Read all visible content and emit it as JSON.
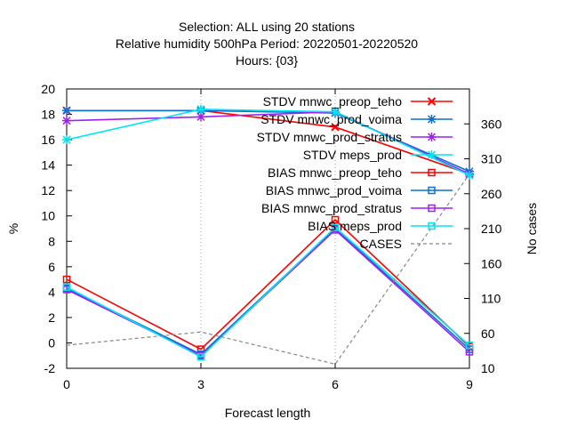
{
  "chart_data": {
    "type": "line",
    "title_lines": [
      "Selection: ALL using    20 stations",
      "Relative humidity 500hPa   Period: 20220501-20220520",
      "Hours: {03}"
    ],
    "xlabel": "Forecast length",
    "ylabel": "%",
    "y2label": "No cases",
    "x": [
      0,
      3,
      6,
      9
    ],
    "xlim": [
      0,
      9
    ],
    "ylim": [
      -2,
      20
    ],
    "y2lim": [
      10,
      410
    ],
    "xticks": [
      0,
      3,
      6,
      9
    ],
    "yticks": [
      -2,
      0,
      2,
      4,
      6,
      8,
      10,
      12,
      14,
      16,
      18,
      20
    ],
    "y2ticks": [
      10,
      60,
      110,
      160,
      210,
      260,
      310,
      360
    ],
    "grid": "dotted vertical at x ticks",
    "legend_position": "top-right inside",
    "series": [
      {
        "name": "STDV mnwc_preop_teho",
        "color": "#ff0000",
        "marker": "x",
        "axis": "y",
        "values": [
          18.3,
          18.3,
          17.0,
          13.3
        ]
      },
      {
        "name": "STDV mnwc_prod_voima",
        "color": "#0a6fd6",
        "marker": "star",
        "axis": "y",
        "values": [
          18.3,
          18.3,
          18.1,
          13.5
        ]
      },
      {
        "name": "STDV mnwc_prod_stratus",
        "color": "#a020f0",
        "marker": "star",
        "axis": "y",
        "values": [
          17.5,
          17.8,
          18.2,
          13.3
        ]
      },
      {
        "name": "STDV meps_prod",
        "color": "#00e5ee",
        "marker": "star",
        "axis": "y",
        "values": [
          16.0,
          18.4,
          18.2,
          13.2
        ]
      },
      {
        "name": "BIAS mnwc_preop_teho",
        "color": "#ff0000",
        "marker": "square",
        "axis": "y",
        "values": [
          5.0,
          -0.5,
          9.7,
          -0.3
        ]
      },
      {
        "name": "BIAS mnwc_prod_voima",
        "color": "#0a6fd6",
        "marker": "square",
        "axis": "y",
        "values": [
          4.3,
          -0.9,
          9.0,
          -0.5
        ]
      },
      {
        "name": "BIAS mnwc_prod_stratus",
        "color": "#a020f0",
        "marker": "square",
        "axis": "y",
        "values": [
          4.2,
          -1.0,
          8.9,
          -0.7
        ]
      },
      {
        "name": "BIAS meps_prod",
        "color": "#00e5ee",
        "marker": "square",
        "axis": "y",
        "values": [
          4.4,
          -1.1,
          9.1,
          -0.2
        ]
      },
      {
        "name": "CASES",
        "color": "#888888",
        "marker": "none",
        "dash": true,
        "axis": "y2",
        "values": [
          43,
          62,
          16,
          288
        ]
      }
    ]
  }
}
